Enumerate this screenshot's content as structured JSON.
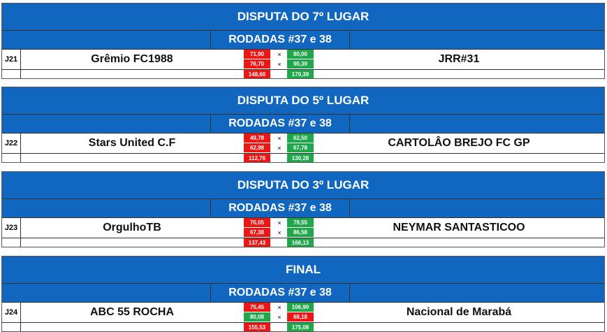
{
  "colors": {
    "header": "#1166bf",
    "loss": "#ee1515",
    "win": "#1ea84a"
  },
  "blocks": [
    {
      "title": "DISPUTA DO 7º LUGAR",
      "rounds": "RODADAS #37 e 38",
      "id": "J21",
      "home": "Grêmio FC1988",
      "away": "JRR#31",
      "home_scores": [
        "71,90",
        "76,70"
      ],
      "away_scores": [
        "80,00",
        "90,39"
      ],
      "home_total": "148,60",
      "away_total": "170,39",
      "vs": "×",
      "home_win": [
        false,
        false,
        false
      ],
      "away_win": [
        true,
        true,
        true
      ]
    },
    {
      "title": "DISPUTA DO 5º LUGAR",
      "rounds": "RODADAS #37 e 38",
      "id": "J22",
      "home": "Stars United C.F",
      "away": "CARTOLÂO BREJO FC GP",
      "home_scores": [
        "49,78",
        "62,98"
      ],
      "away_scores": [
        "62,50",
        "67,78"
      ],
      "home_total": "112,76",
      "away_total": "130,28",
      "vs": "×",
      "home_win": [
        false,
        false,
        false
      ],
      "away_win": [
        true,
        true,
        true
      ]
    },
    {
      "title": "DISPUTA DO 3º LUGAR",
      "rounds": "RODADAS #37 e 38",
      "id": "J23",
      "home": "OrgulhoTB",
      "away": "NEYMAR SANTASTICOO",
      "home_scores": [
        "70,05",
        "67,38"
      ],
      "away_scores": [
        "79,55",
        "86,58"
      ],
      "home_total": "137,43",
      "away_total": "166,13",
      "vs": "×",
      "home_win": [
        false,
        false,
        false
      ],
      "away_win": [
        true,
        true,
        true
      ]
    },
    {
      "title": "FINAL",
      "rounds": "RODADAS #37 e 38",
      "id": "J24",
      "home": "ABC 55 ROCHA",
      "away": "Nacional de Marabá",
      "home_scores": [
        "75,45",
        "80,08"
      ],
      "away_scores": [
        "106,90",
        "68,18"
      ],
      "home_total": "155,53",
      "away_total": "175,08",
      "vs": "×",
      "home_win": [
        false,
        true,
        false
      ],
      "away_win": [
        true,
        false,
        true
      ]
    }
  ]
}
